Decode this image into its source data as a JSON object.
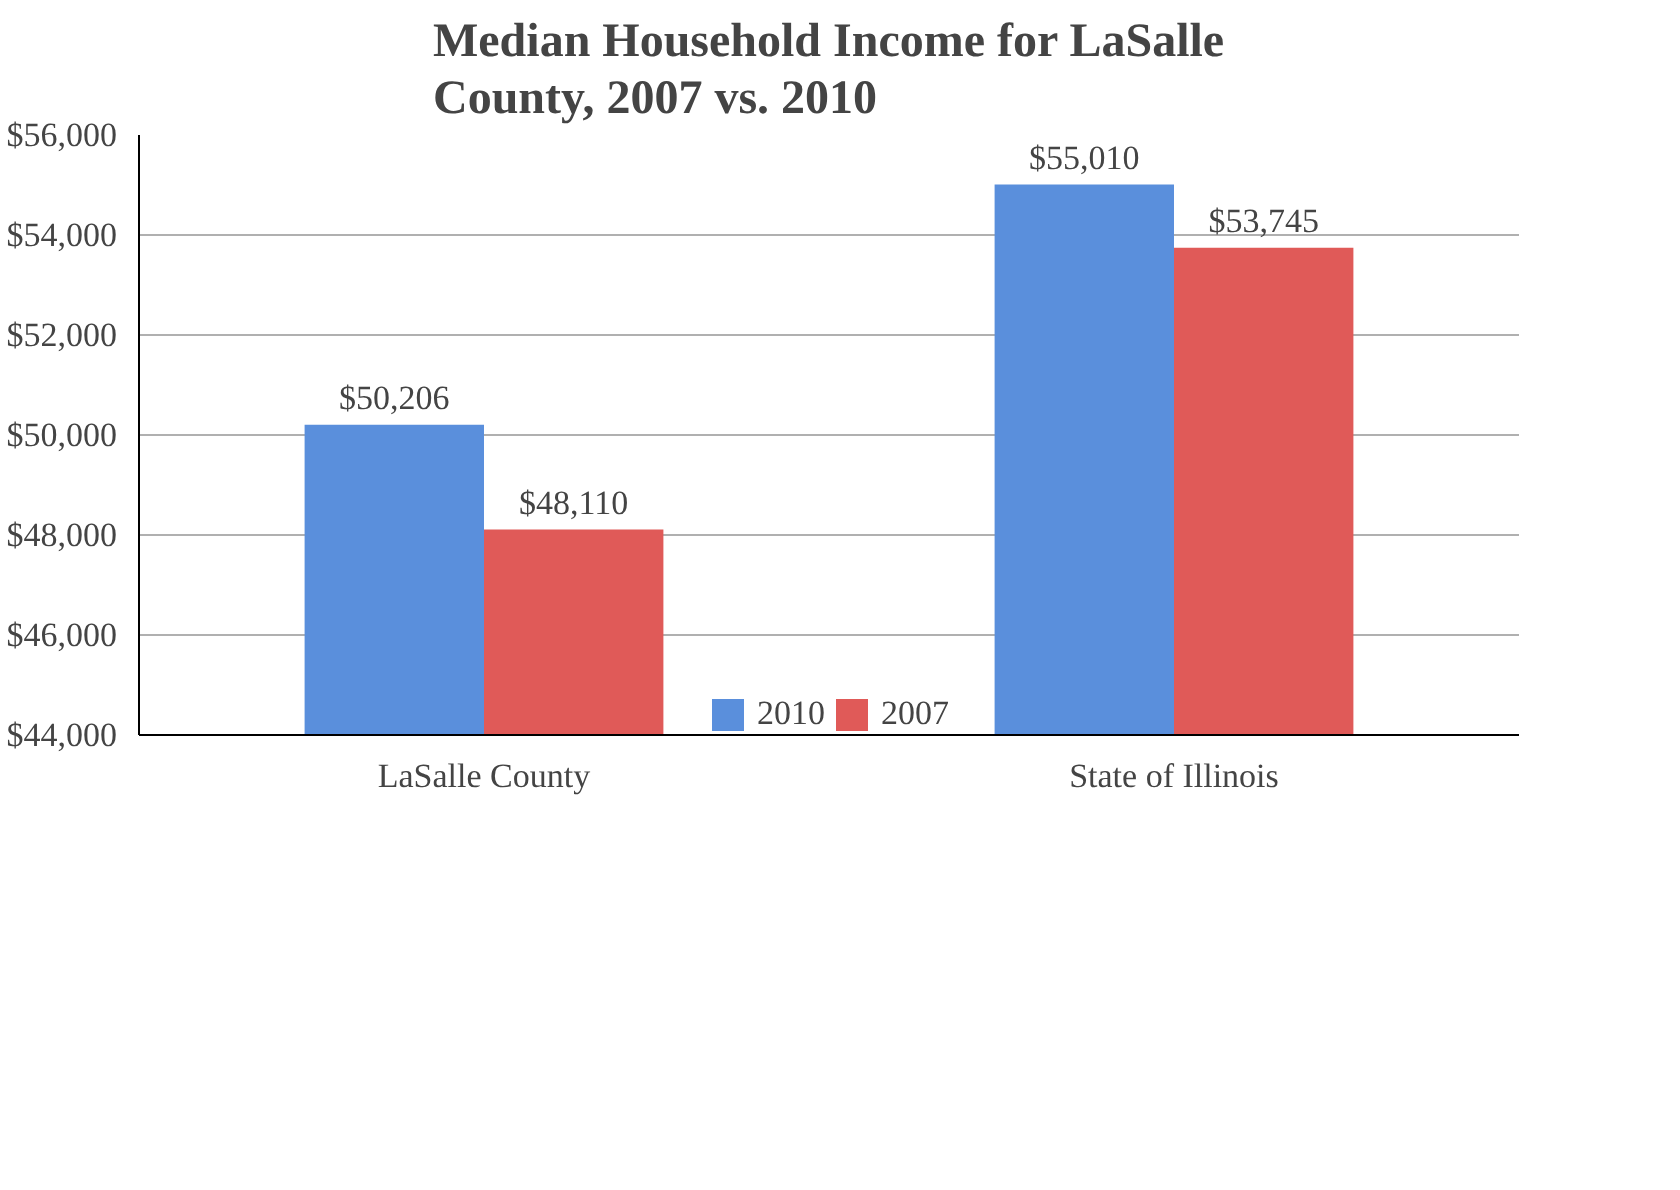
{
  "chart_data": {
    "type": "bar",
    "title": "Median Household Income for LaSalle County, 2007 vs. 2010",
    "categories": [
      "LaSalle County",
      "State of Illinois"
    ],
    "series": [
      {
        "name": "2010",
        "color": "#5a8fdc",
        "values": [
          50206,
          55010
        ]
      },
      {
        "name": "2007",
        "color": "#e05a58",
        "values": [
          48110,
          53745
        ]
      }
    ],
    "value_labels": [
      [
        "$50,206",
        "$55,010"
      ],
      [
        "$48,110",
        "$53,745"
      ]
    ],
    "ylim": [
      44000,
      56000
    ],
    "yticks": [
      {
        "value": 44000,
        "label": "$44,000"
      },
      {
        "value": 46000,
        "label": "$46,000"
      },
      {
        "value": 48000,
        "label": "$48,000"
      },
      {
        "value": 50000,
        "label": "$50,000"
      },
      {
        "value": 52000,
        "label": "$52,000"
      },
      {
        "value": 54000,
        "label": "$54,000"
      },
      {
        "value": 56000,
        "label": "$56,000"
      }
    ],
    "grid": "y",
    "legend": "bottom"
  }
}
